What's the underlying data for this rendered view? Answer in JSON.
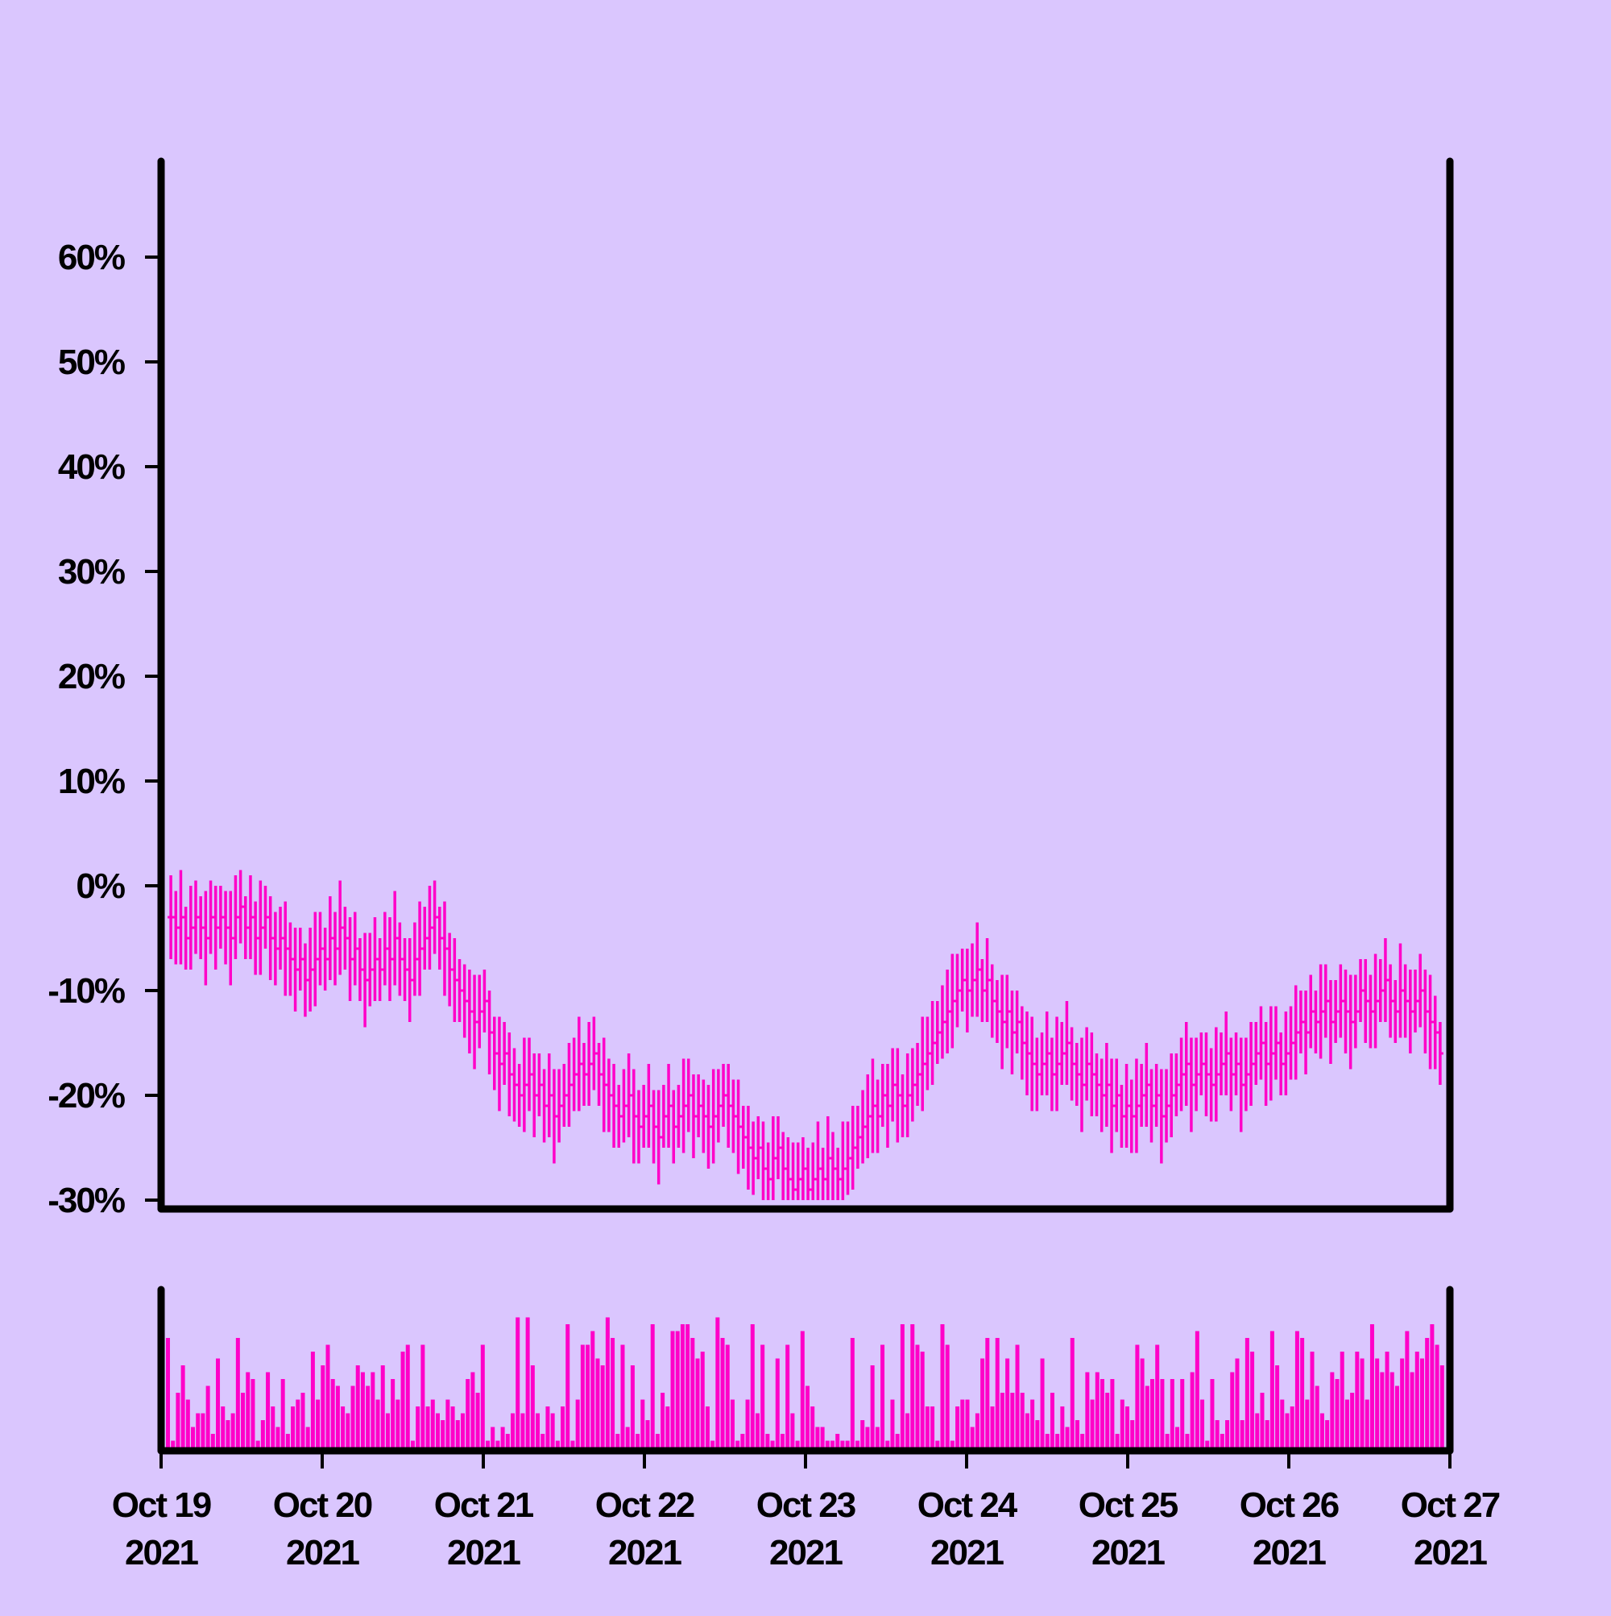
{
  "colors": {
    "background": "#dac6fe",
    "bars": "#ff00c8",
    "axis": "#000000"
  },
  "chart_data": {
    "type": "ohlc",
    "title": "",
    "xlabel": "",
    "ylabel": "",
    "x_range": [
      "2021-10-19",
      "2021-10-27"
    ],
    "ylim": [
      -30,
      70
    ],
    "y_tick_values": [
      -30,
      -20,
      -10,
      0,
      10,
      20,
      30,
      40,
      50,
      60
    ],
    "y_tick_labels": [
      "-30%",
      "-20%",
      "-10%",
      "0%",
      "10%",
      "20%",
      "30%",
      "40%",
      "50%",
      "60%"
    ],
    "x_tick_labels": [
      [
        "Oct 19",
        "2021"
      ],
      [
        "Oct 20",
        "2021"
      ],
      [
        "Oct 21",
        "2021"
      ],
      [
        "Oct 22",
        "2021"
      ],
      [
        "Oct 23",
        "2021"
      ],
      [
        "Oct 24",
        "2021"
      ],
      [
        "Oct 25",
        "2021"
      ],
      [
        "Oct 26",
        "2021"
      ],
      [
        "Oct 27",
        "2021"
      ]
    ],
    "grid": false,
    "legend": "none",
    "bars_per_day": 32,
    "period_hours": 0.75,
    "series": [
      {
        "kind": "price_range",
        "close_percent": [
          -3,
          -4,
          -3,
          -5,
          -4,
          -3,
          -4,
          -5,
          -3,
          -4,
          -3,
          -4,
          -5,
          -3,
          -2,
          -4,
          -3,
          -5,
          -4,
          -3,
          -5,
          -6,
          -5,
          -6,
          -7,
          -8,
          -7,
          -9,
          -8,
          -7,
          -6,
          -7,
          -5,
          -6,
          -4,
          -5,
          -7,
          -6,
          -8,
          -9,
          -8,
          -7,
          -8,
          -6,
          -7,
          -5,
          -7,
          -8,
          -9,
          -7,
          -6,
          -5,
          -4,
          -3,
          -5,
          -6,
          -8,
          -9,
          -10,
          -11,
          -12,
          -13,
          -12,
          -11,
          -14,
          -16,
          -17,
          -16,
          -18,
          -19,
          -20,
          -19,
          -18,
          -20,
          -19,
          -21,
          -20,
          -22,
          -21,
          -20,
          -19,
          -18,
          -17,
          -18,
          -17,
          -16,
          -18,
          -19,
          -20,
          -21,
          -22,
          -21,
          -20,
          -22,
          -23,
          -22,
          -21,
          -23,
          -24,
          -22,
          -21,
          -23,
          -22,
          -21,
          -20,
          -22,
          -21,
          -22,
          -23,
          -22,
          -21,
          -20,
          -21,
          -22,
          -23,
          -24,
          -25,
          -26,
          -25,
          -27,
          -28,
          -26,
          -25,
          -27,
          -28,
          -29,
          -28,
          -27,
          -29,
          -28,
          -27,
          -28,
          -26,
          -27,
          -28,
          -27,
          -26,
          -25,
          -24,
          -23,
          -22,
          -21,
          -22,
          -20,
          -21,
          -19,
          -20,
          -21,
          -20,
          -19,
          -18,
          -17,
          -16,
          -15,
          -14,
          -13,
          -12,
          -11,
          -10,
          -9,
          -10,
          -9,
          -8,
          -10,
          -9,
          -11,
          -12,
          -13,
          -12,
          -14,
          -13,
          -15,
          -16,
          -17,
          -18,
          -17,
          -16,
          -18,
          -17,
          -16,
          -15,
          -17,
          -18,
          -19,
          -17,
          -18,
          -19,
          -20,
          -19,
          -21,
          -20,
          -22,
          -21,
          -22,
          -21,
          -20,
          -19,
          -21,
          -20,
          -22,
          -21,
          -20,
          -19,
          -18,
          -17,
          -19,
          -18,
          -17,
          -18,
          -19,
          -18,
          -17,
          -16,
          -18,
          -17,
          -19,
          -18,
          -17,
          -16,
          -15,
          -17,
          -16,
          -15,
          -17,
          -16,
          -15,
          -14,
          -13,
          -14,
          -12,
          -13,
          -12,
          -11,
          -13,
          -12,
          -11,
          -12,
          -13,
          -12,
          -10,
          -11,
          -12,
          -11,
          -10,
          -9,
          -11,
          -12,
          -10,
          -11,
          -12,
          -11,
          -10,
          -12,
          -13,
          -14,
          -16
        ],
        "range_percent": [
          8,
          7,
          9,
          6,
          8,
          7,
          6,
          9,
          7,
          8,
          6,
          7,
          9,
          8,
          7,
          6,
          8,
          7,
          9,
          6,
          8,
          7,
          6,
          9,
          7,
          8,
          6,
          7,
          8,
          9,
          7,
          6,
          8,
          7,
          9,
          6,
          8,
          7,
          6,
          9,
          7,
          8,
          6,
          7,
          8,
          9,
          7,
          6,
          8,
          7,
          9,
          6,
          8,
          7,
          6,
          9,
          7,
          8,
          6,
          7,
          8,
          9,
          7,
          6,
          8,
          7,
          9,
          6,
          8,
          7,
          6,
          9,
          7,
          8,
          6,
          7,
          8,
          9,
          7,
          6,
          8,
          7,
          9,
          6,
          8,
          7,
          6,
          9,
          7,
          8,
          6,
          7,
          8,
          9,
          7,
          6,
          8,
          7,
          9,
          6,
          8,
          7,
          6,
          9,
          7,
          8,
          6,
          7,
          8,
          9,
          7,
          6,
          8,
          7,
          9,
          6,
          8,
          7,
          6,
          9,
          7,
          8,
          6,
          7,
          8,
          9,
          7,
          6,
          8,
          7,
          9,
          6,
          8,
          7,
          6,
          9,
          7,
          8,
          6,
          7,
          8,
          9,
          7,
          6,
          8,
          7,
          9,
          6,
          8,
          7,
          6,
          9,
          7,
          8,
          6,
          7,
          8,
          9,
          7,
          6,
          8,
          7,
          9,
          6,
          8,
          7,
          6,
          9,
          7,
          8,
          6,
          7,
          8,
          9,
          7,
          6,
          8,
          7,
          9,
          6,
          8,
          7,
          6,
          9,
          7,
          8,
          6,
          7,
          8,
          9,
          7,
          6,
          8,
          7,
          9,
          6,
          8,
          7,
          6,
          9,
          7,
          8,
          6,
          7,
          8,
          9,
          7,
          6,
          8,
          7,
          9,
          6,
          8,
          7,
          6,
          9,
          7,
          8,
          6,
          7,
          8,
          9,
          7,
          6,
          8,
          7,
          9,
          6,
          8,
          7,
          6,
          9,
          7,
          8,
          6,
          7,
          8,
          9,
          7,
          6,
          8,
          7,
          9,
          6,
          8,
          7,
          6,
          9,
          7,
          8,
          6,
          7,
          8,
          9,
          7,
          6
        ]
      },
      {
        "kind": "volume",
        "relative_volume": [
          0.8,
          0.05,
          0.4,
          0.6,
          0.35,
          0.15,
          0.25,
          0.25,
          0.45,
          0.1,
          0.65,
          0.3,
          0.2,
          0.25,
          0.8,
          0.4,
          0.55,
          0.5,
          0.05,
          0.2,
          0.55,
          0.3,
          0.15,
          0.5,
          0.1,
          0.3,
          0.35,
          0.4,
          0.15,
          0.7,
          0.35,
          0.6,
          0.75,
          0.5,
          0.45,
          0.3,
          0.25,
          0.45,
          0.6,
          0.55,
          0.45,
          0.55,
          0.35,
          0.6,
          0.25,
          0.5,
          0.35,
          0.7,
          0.75,
          0.05,
          0.3,
          0.75,
          0.3,
          0.35,
          0.25,
          0.2,
          0.35,
          0.3,
          0.2,
          0.25,
          0.5,
          0.55,
          0.4,
          0.75,
          0.05,
          0.15,
          0.05,
          0.15,
          0.1,
          0.25,
          0.95,
          0.25,
          0.95,
          0.6,
          0.25,
          0.1,
          0.3,
          0.25,
          0.05,
          0.3,
          0.9,
          0.05,
          0.35,
          0.75,
          0.75,
          0.85,
          0.65,
          0.6,
          0.95,
          0.8,
          0.1,
          0.75,
          0.15,
          0.6,
          0.1,
          0.35,
          0.2,
          0.9,
          0.1,
          0.4,
          0.3,
          0.85,
          0.85,
          0.9,
          0.9,
          0.8,
          0.65,
          0.7,
          0.3,
          0.05,
          0.95,
          0.8,
          0.75,
          0.35,
          0.05,
          0.1,
          0.35,
          0.9,
          0.25,
          0.75,
          0.1,
          0.05,
          0.65,
          0.1,
          0.75,
          0.25,
          0.05,
          0.85,
          0.45,
          0.3,
          0.15,
          0.15,
          0.05,
          0.05,
          0.1,
          0.05,
          0.05,
          0.8,
          0.05,
          0.2,
          0.15,
          0.6,
          0.15,
          0.75,
          0.05,
          0.35,
          0.1,
          0.9,
          0.25,
          0.9,
          0.75,
          0.7,
          0.3,
          0.3,
          0.05,
          0.9,
          0.75,
          0.05,
          0.3,
          0.35,
          0.35,
          0.15,
          0.25,
          0.65,
          0.8,
          0.3,
          0.8,
          0.4,
          0.65,
          0.4,
          0.75,
          0.4,
          0.25,
          0.35,
          0.2,
          0.65,
          0.1,
          0.4,
          0.1,
          0.3,
          0.15,
          0.8,
          0.2,
          0.1,
          0.55,
          0.35,
          0.55,
          0.5,
          0.4,
          0.5,
          0.1,
          0.35,
          0.3,
          0.2,
          0.75,
          0.65,
          0.45,
          0.5,
          0.75,
          0.5,
          0.1,
          0.5,
          0.15,
          0.5,
          0.1,
          0.55,
          0.85,
          0.35,
          0.05,
          0.5,
          0.2,
          0.1,
          0.2,
          0.55,
          0.65,
          0.2,
          0.8,
          0.7,
          0.25,
          0.4,
          0.2,
          0.85,
          0.6,
          0.35,
          0.25,
          0.3,
          0.85,
          0.8,
          0.35,
          0.7,
          0.45,
          0.25,
          0.2,
          0.55,
          0.5,
          0.7,
          0.35,
          0.4,
          0.7,
          0.65,
          0.35,
          0.9,
          0.65,
          0.55,
          0.7,
          0.55,
          0.45,
          0.65,
          0.85,
          0.55,
          0.7,
          0.65,
          0.8,
          0.9,
          0.75,
          0.6
        ]
      }
    ]
  }
}
